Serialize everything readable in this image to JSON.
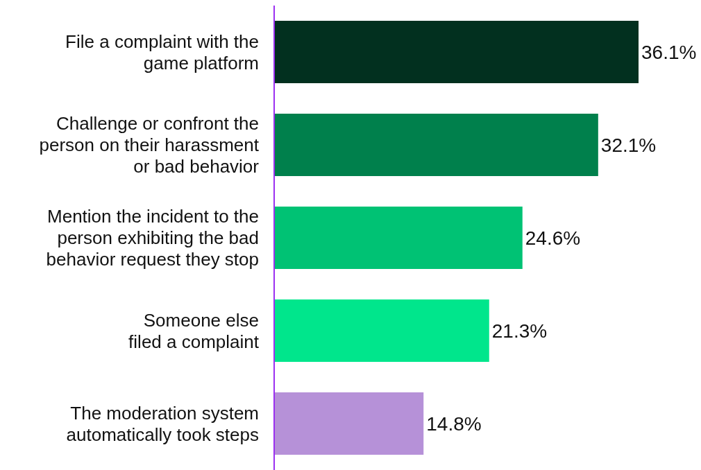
{
  "chart_data": {
    "type": "bar",
    "orientation": "horizontal",
    "categories": [
      "File a complaint with the game platform",
      "Challenge or confront the person on their harassment or bad behavior",
      "Mention the incident to the person exhibiting the bad behavior request they stop",
      "Someone else filed a complaint",
      "The moderation system automatically took steps"
    ],
    "values": [
      36.1,
      32.1,
      24.6,
      21.3,
      14.8
    ],
    "colors": [
      "#02301f",
      "#00804c",
      "#00c274",
      "#00e68c",
      "#b691d8"
    ],
    "value_labels": [
      "36.1%",
      "32.1%",
      "24.6%",
      "21.3%",
      "14.8%"
    ]
  }
}
